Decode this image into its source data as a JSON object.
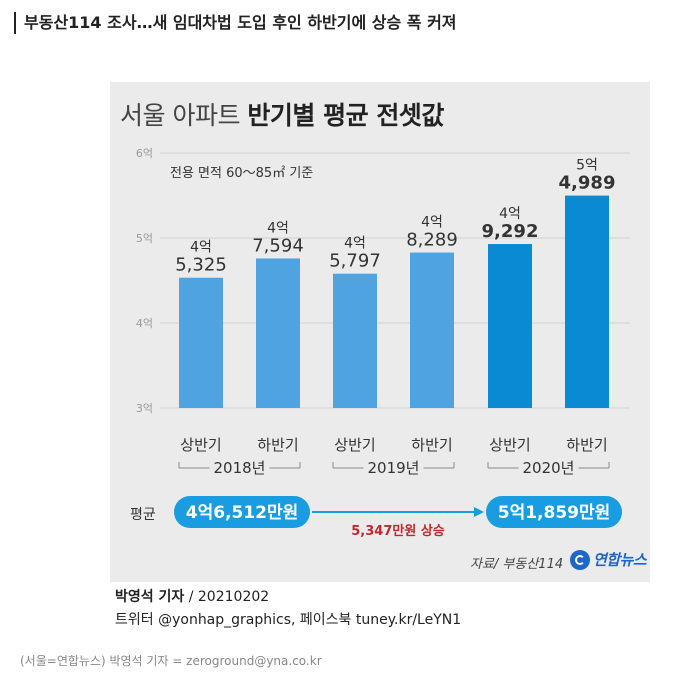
{
  "headline": "부동산114 조사…새 임대차법 도입 후인 하반기에 상승 폭 커져",
  "chart_data": {
    "type": "bar",
    "title_light": "서울 아파트",
    "title_bold": "반기별 평균 전셋값",
    "subtitle": "전용 면적 60～85㎡ 기준",
    "unit": "억원",
    "ylim": [
      3,
      6
    ],
    "yticks": [
      "3억",
      "4억",
      "5억",
      "6억"
    ],
    "grid": true,
    "categories": [
      "2018 상반기",
      "2018 하반기",
      "2019 상반기",
      "2019 하반기",
      "2020 상반기",
      "2020 하반기"
    ],
    "half_labels": [
      "상반기",
      "하반기",
      "상반기",
      "하반기",
      "상반기",
      "하반기"
    ],
    "values": [
      4.5325,
      4.7594,
      4.5797,
      4.8289,
      4.9292,
      5.4989
    ],
    "value_labels_top": [
      "4억",
      "4억",
      "4억",
      "4억",
      "4억",
      "5억"
    ],
    "value_labels_bottom": [
      "5,325",
      "7,594",
      "5,797",
      "8,289",
      "9,292",
      "4,989"
    ],
    "years": [
      "2018년",
      "2019년",
      "2020년"
    ],
    "average_label": "평균",
    "average_2018": "4억6,512만원",
    "average_2020": "5억1,859만원",
    "increase_label": "5,347만원 상승"
  },
  "colors": {
    "bar_light": "#4fa3e0",
    "bar_dark": "#0b8ad4",
    "panel": "#ebebeb",
    "increase_text": "#c0282d",
    "pill": "#1a9de0"
  },
  "source": "자료/ 부동산114",
  "logo_text": "연합뉴스",
  "credit_reporter": "박영석 기자",
  "credit_date": "/ 20210202",
  "credit_social": "트위터 @yonhap_graphics, 페이스북 tuney.kr/LeYN1",
  "caption": "(서울=연합뉴스) 박영석 기자 = zeroground@yna.co.kr"
}
